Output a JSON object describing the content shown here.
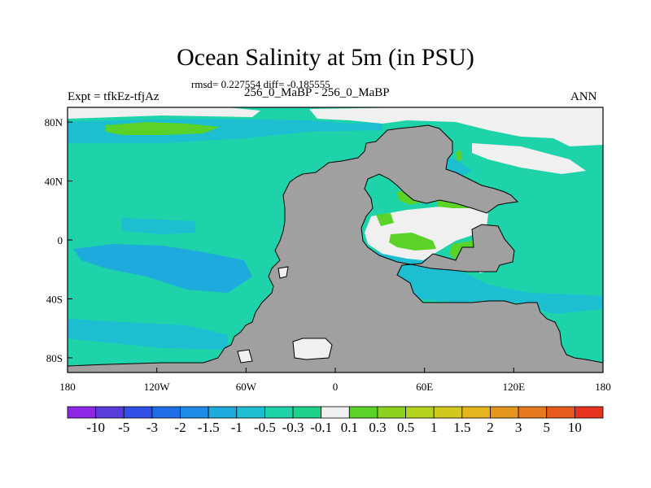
{
  "title": "Ocean Salinity at 5m (in PSU)",
  "stats_line": "rmsd= 0.227554 diff= -0.185555",
  "cases_line": "256_0_MaBP - 256_0_MaBP",
  "expt_label": "Expt = tfkEz-tfjAz",
  "season_label": "ANN",
  "map": {
    "x_ticks": [
      "180",
      "120W",
      "60W",
      "0",
      "60E",
      "120E",
      "180"
    ],
    "y_ticks": [
      "80N",
      "40N",
      "0",
      "40S",
      "80S"
    ],
    "x_range": [
      -180,
      180
    ],
    "y_range": [
      -90,
      90
    ],
    "land_color": "#a0a0a0",
    "ocean_base_color": "#1ed2aa"
  },
  "colorbar": {
    "labels": [
      "-10",
      "-5",
      "-3",
      "-2",
      "-1.5",
      "-1",
      "-0.5",
      "-0.3",
      "-0.1",
      "0.1",
      "0.3",
      "0.5",
      "1",
      "1.5",
      "2",
      "3",
      "5",
      "10"
    ],
    "colors": [
      "#8c28e6",
      "#5a3cdc",
      "#3250e6",
      "#1e6ee6",
      "#1e8ce6",
      "#1eaadc",
      "#1ebed2",
      "#1ed2aa",
      "#1ed28c",
      "#f0f0f0",
      "#5ad228",
      "#8cd21e",
      "#b4d21e",
      "#d2c81e",
      "#e6b41e",
      "#e6961e",
      "#e6781e",
      "#e65a1e",
      "#e6321e"
    ]
  }
}
